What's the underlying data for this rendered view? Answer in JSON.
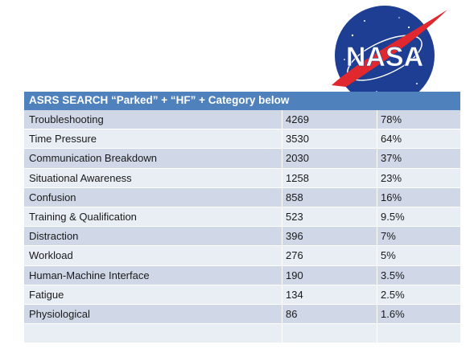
{
  "logo": {
    "text": "NASA"
  },
  "table": {
    "header": "ASRS SEARCH “Parked” + “HF” + Category below",
    "rows": [
      {
        "category": "Troubleshooting",
        "count": "4269",
        "percent": "78%"
      },
      {
        "category": "Time Pressure",
        "count": "3530",
        "percent": "64%"
      },
      {
        "category": "Communication Breakdown",
        "count": "2030",
        "percent": "37%"
      },
      {
        "category": "Situational Awareness",
        "count": "1258",
        "percent": "23%"
      },
      {
        "category": "Confusion",
        "count": "858",
        "percent": "16%"
      },
      {
        "category": "Training & Qualification",
        "count": "523",
        "percent": "9.5%"
      },
      {
        "category": "Distraction",
        "count": "396",
        "percent": "7%"
      },
      {
        "category": "Workload",
        "count": "276",
        "percent": "5%"
      },
      {
        "category": "Human-Machine Interface",
        "count": "190",
        "percent": "3.5%"
      },
      {
        "category": "Fatigue",
        "count": "134",
        "percent": "2.5%"
      },
      {
        "category": "Physiological",
        "count": "86",
        "percent": "1.6%"
      },
      {
        "category": "",
        "count": "",
        "percent": ""
      }
    ]
  }
}
